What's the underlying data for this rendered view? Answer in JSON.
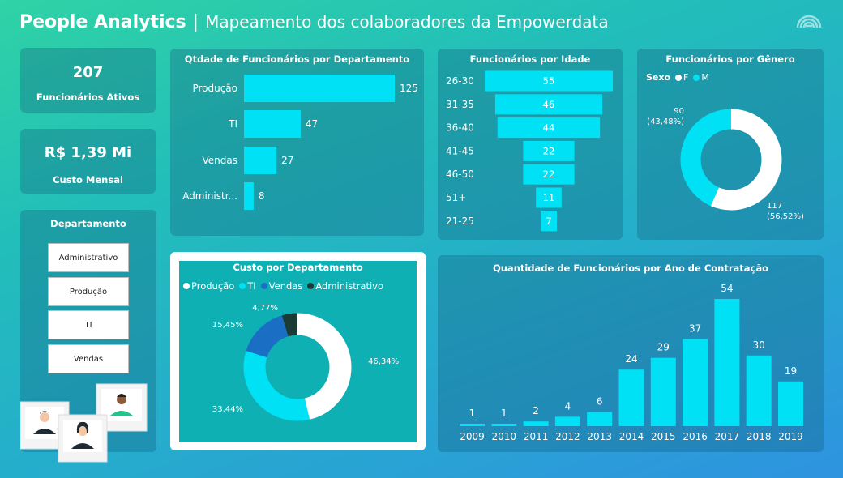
{
  "header": {
    "title": "People Analytics",
    "separator": "|",
    "subtitle": "Mapeamento dos colaboradores da Empowerdata"
  },
  "kpis": [
    {
      "value": "207",
      "label": "Funcionários Ativos"
    },
    {
      "value": "R$ 1,39 Mi",
      "label": "Custo Mensal"
    }
  ],
  "slicer": {
    "title": "Departamento",
    "options": [
      "Administrativo",
      "Produção",
      "TI",
      "Vendas"
    ]
  },
  "colors": {
    "bar": "#00e1f5",
    "white": "#ffffff",
    "blue": "#1a6fc4",
    "dark": "#1c3b36"
  },
  "chart_data": [
    {
      "type": "bar",
      "orientation": "horizontal",
      "title": "Qtdade de Funcionários por Departamento",
      "categories": [
        "Produção",
        "TI",
        "Vendas",
        "Administr..."
      ],
      "values": [
        125,
        47,
        27,
        8
      ]
    },
    {
      "type": "bar",
      "orientation": "horizontal-funnel",
      "title": "Funcionários por Idade",
      "categories": [
        "26-30",
        "31-35",
        "36-40",
        "41-45",
        "46-50",
        "51+",
        "21-25"
      ],
      "values": [
        55,
        46,
        44,
        22,
        22,
        11,
        7
      ]
    },
    {
      "type": "pie",
      "variant": "donut",
      "title": "Funcionários por Gênero",
      "legend_title": "Sexo",
      "categories": [
        "F",
        "M"
      ],
      "values": [
        117,
        90
      ],
      "labels": [
        "117\n(56,52%)",
        "90\n(43,48%)"
      ]
    },
    {
      "type": "pie",
      "variant": "donut",
      "title": "Custo por Departamento",
      "categories": [
        "Produção",
        "TI",
        "Vendas",
        "Administrativo"
      ],
      "values": [
        46.34,
        33.44,
        15.45,
        4.77
      ],
      "labels": [
        "46,34%",
        "33,44%",
        "15,45%",
        "4,77%"
      ]
    },
    {
      "type": "bar",
      "title": "Quantidade de Funcionários por Ano de Contratação",
      "categories": [
        "2009",
        "2010",
        "2011",
        "2012",
        "2013",
        "2014",
        "2015",
        "2016",
        "2017",
        "2018",
        "2019"
      ],
      "values": [
        1,
        1,
        2,
        4,
        6,
        24,
        29,
        37,
        54,
        30,
        19
      ]
    }
  ]
}
